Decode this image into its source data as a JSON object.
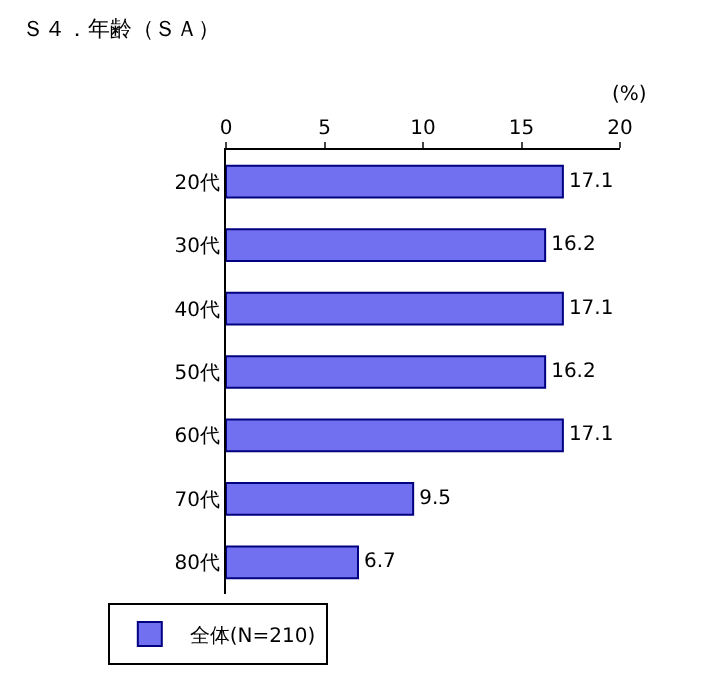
{
  "chart_data": {
    "type": "bar",
    "orientation": "horizontal",
    "title": "Ｓ４．年齢（ＳＡ）",
    "xlabel": "(%)",
    "categories": [
      "20代",
      "30代",
      "40代",
      "50代",
      "60代",
      "70代",
      "80代"
    ],
    "series": [
      {
        "name": "全体(N=210)",
        "color": "#7070f0",
        "values": [
          17.1,
          16.2,
          17.1,
          16.2,
          17.1,
          9.5,
          6.7
        ]
      }
    ],
    "xlim": [
      0,
      20
    ],
    "xticks": [
      0,
      5,
      10,
      15,
      20
    ],
    "data_labels": true,
    "grid": false,
    "legend": "bottom"
  }
}
